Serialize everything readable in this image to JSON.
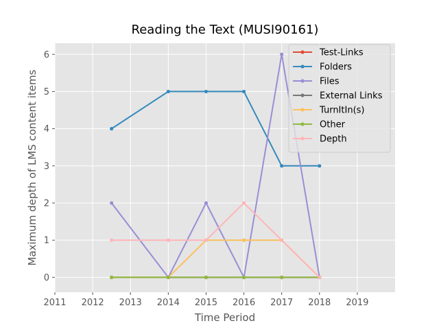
{
  "chart_data": {
    "type": "line",
    "title": "Reading the Text (MUSI90161)",
    "xlabel": "Time Period",
    "ylabel": "Maximum depth of LMS content items",
    "xlim": [
      2011,
      2020
    ],
    "ylim": [
      -0.4,
      6.3
    ],
    "xticks": [
      "2011",
      "2012",
      "2013",
      "2014",
      "2015",
      "2016",
      "2017",
      "2018",
      "2019"
    ],
    "yticks": [
      "0",
      "1",
      "2",
      "3",
      "4",
      "5",
      "6"
    ],
    "grid": true,
    "legend_position": "top-right",
    "x": [
      2012.5,
      2014,
      2015,
      2016,
      2017,
      2018
    ],
    "series": [
      {
        "name": "Test-Links",
        "color": "#E24A33",
        "values": [
          0,
          0,
          0,
          0,
          0,
          0
        ]
      },
      {
        "name": "Folders",
        "color": "#348ABD",
        "values": [
          4,
          5,
          5,
          5,
          3,
          3
        ]
      },
      {
        "name": "Files",
        "color": "#988ED5",
        "values": [
          2,
          0,
          2,
          0,
          6,
          0
        ]
      },
      {
        "name": "External Links",
        "color": "#777777",
        "values": [
          0,
          0,
          0,
          0,
          0,
          0
        ]
      },
      {
        "name": "TurnItIn(s)",
        "color": "#FBC15E",
        "values": [
          0,
          0,
          1,
          1,
          1,
          0
        ]
      },
      {
        "name": "Other",
        "color": "#8EBA42",
        "values": [
          0,
          0,
          0,
          0,
          0,
          0
        ]
      },
      {
        "name": "Depth",
        "color": "#FFB5B8",
        "values": [
          1,
          1,
          1,
          2,
          1,
          0
        ]
      }
    ]
  }
}
